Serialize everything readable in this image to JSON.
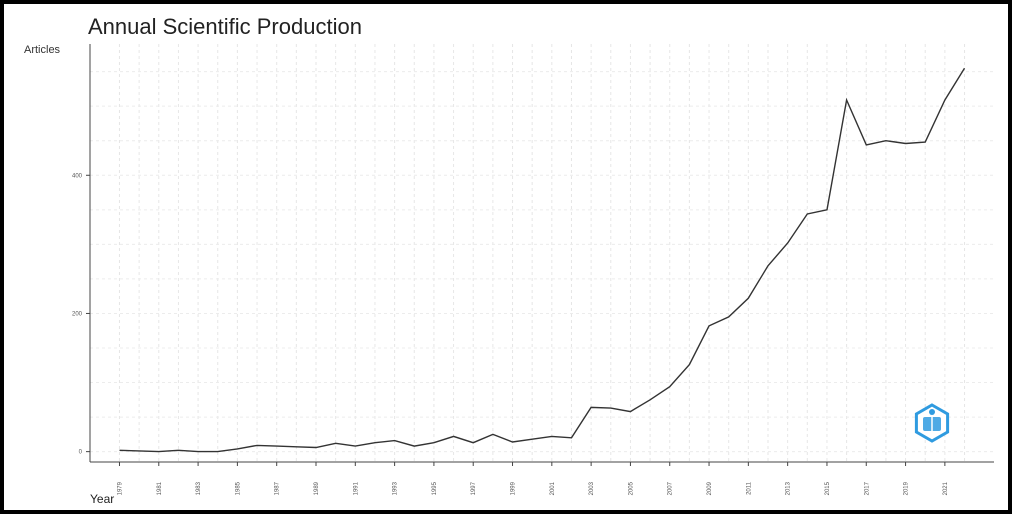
{
  "chart_data": {
    "type": "line",
    "title": "Annual Scientific Production",
    "xlabel": "Year",
    "ylabel": "Articles",
    "x": [
      1979,
      1980,
      1981,
      1982,
      1983,
      1984,
      1985,
      1986,
      1987,
      1988,
      1989,
      1990,
      1991,
      1992,
      1993,
      1994,
      1995,
      1996,
      1997,
      1998,
      1999,
      2000,
      2001,
      2002,
      2003,
      2004,
      2005,
      2006,
      2007,
      2008,
      2009,
      2010,
      2011,
      2012,
      2013,
      2014,
      2015,
      2016,
      2017,
      2018,
      2019,
      2020,
      2021,
      2022
    ],
    "series": [
      {
        "values": [
          2,
          1,
          0,
          2,
          0,
          0,
          4,
          9,
          8,
          7,
          6,
          12,
          8,
          13,
          16,
          8,
          13,
          22,
          13,
          25,
          14,
          18,
          22,
          20,
          64,
          63,
          58,
          75,
          94,
          126,
          182,
          195,
          222,
          269,
          302,
          344,
          350,
          509,
          444,
          450,
          446,
          448,
          509,
          555
        ]
      }
    ],
    "ylim": [
      -15,
      590
    ],
    "xlim": [
      1977.5,
      2023.5
    ],
    "yticks": [
      0,
      200,
      400
    ],
    "xticks": [
      1979,
      1981,
      1983,
      1985,
      1987,
      1989,
      1991,
      1993,
      1995,
      1997,
      1999,
      2001,
      2003,
      2005,
      2007,
      2009,
      2011,
      2013,
      2015,
      2017,
      2019,
      2021
    ],
    "grid": true,
    "legend": "none",
    "line_color": "#333333"
  },
  "logo": {
    "name": "bibliometrix-logo-icon",
    "color": "#2f9be0"
  }
}
